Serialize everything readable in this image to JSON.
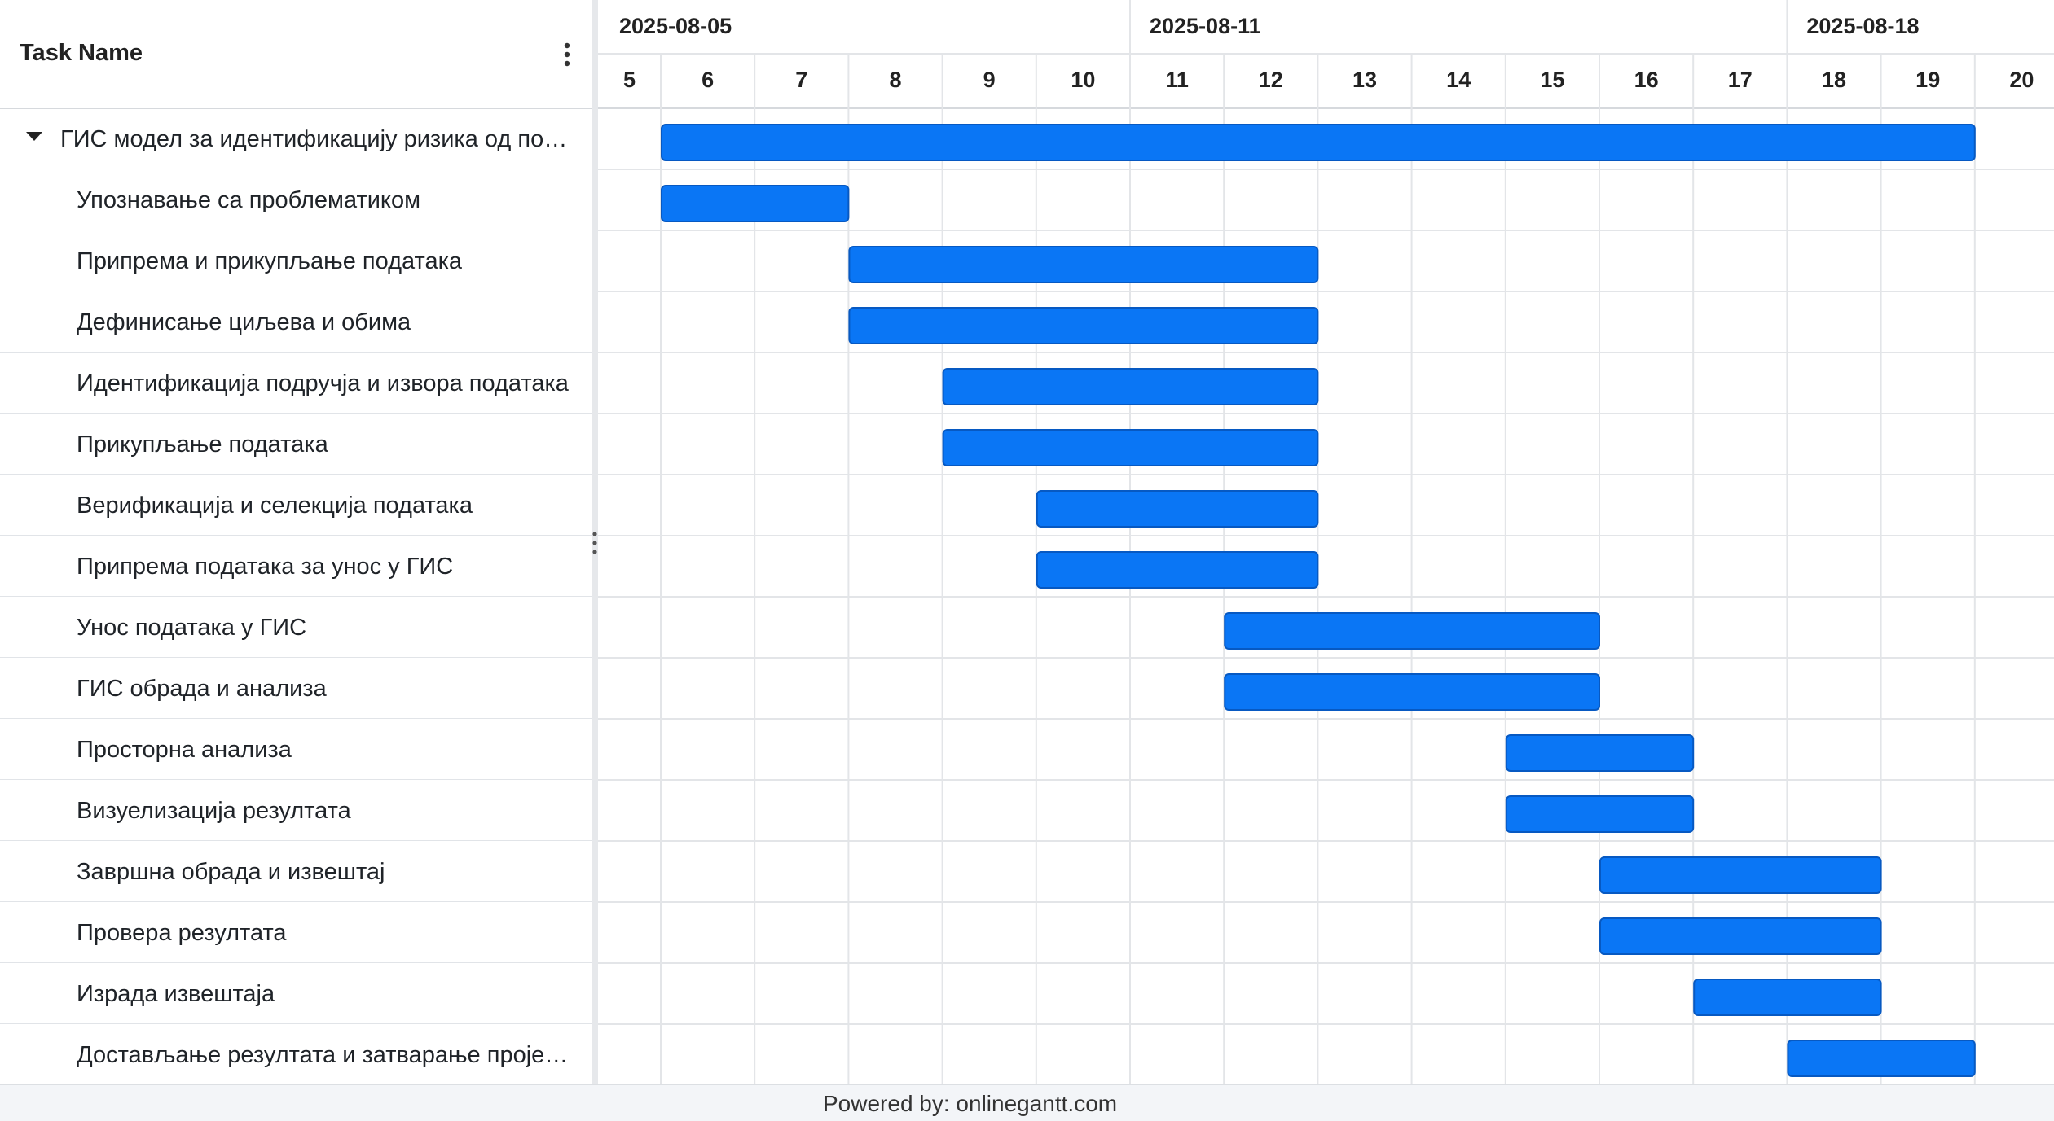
{
  "colors": {
    "bar": "#0a76f5",
    "bar_border": "#0759c2",
    "grid": "#e3e5e8",
    "header_text": "#222222"
  },
  "task_header": {
    "title": "Task Name",
    "menu_icon": "vertical-ellipsis-icon"
  },
  "timeline": {
    "week_labels": [
      {
        "label": "2025-08-05",
        "day": 5
      },
      {
        "label": "2025-08-11",
        "day": 11
      },
      {
        "label": "2025-08-18",
        "day": 18
      }
    ],
    "days": [
      5,
      6,
      7,
      8,
      9,
      10,
      11,
      12,
      13,
      14,
      15,
      16,
      17,
      18,
      19,
      20
    ]
  },
  "tasks": [
    {
      "name": "ГИС модел за идентификацију ризика од поплава",
      "level": 0,
      "collapsible": true,
      "start": 6,
      "end": 20
    },
    {
      "name": "Упознавање са проблематиком",
      "level": 1,
      "start": 6,
      "end": 8
    },
    {
      "name": "Припрема и прикупљање података",
      "level": 1,
      "start": 8,
      "end": 13
    },
    {
      "name": "Дефинисање циљева и обима",
      "level": 1,
      "start": 8,
      "end": 13
    },
    {
      "name": "Идентификација подручја и извора података",
      "level": 1,
      "start": 9,
      "end": 13
    },
    {
      "name": "Прикупљање података",
      "level": 1,
      "start": 9,
      "end": 13
    },
    {
      "name": "Верификација и селекција података",
      "level": 1,
      "start": 10,
      "end": 13
    },
    {
      "name": "Припрема података за унос у ГИС",
      "level": 1,
      "start": 10,
      "end": 13
    },
    {
      "name": "Унос података у ГИС",
      "level": 1,
      "start": 12,
      "end": 16
    },
    {
      "name": "ГИС обрада и анализа",
      "level": 1,
      "start": 12,
      "end": 16
    },
    {
      "name": "Просторна анализа",
      "level": 1,
      "start": 15,
      "end": 17
    },
    {
      "name": "Визуелизација резултата",
      "level": 1,
      "start": 15,
      "end": 17
    },
    {
      "name": "Завршна обрада и извештај",
      "level": 1,
      "start": 16,
      "end": 19
    },
    {
      "name": "Провера резултата",
      "level": 1,
      "start": 16,
      "end": 19
    },
    {
      "name": "Израда извештаја",
      "level": 1,
      "start": 17,
      "end": 19
    },
    {
      "name": "Достављање резултата и затварање пројекта",
      "level": 1,
      "start": 18,
      "end": 20
    }
  ],
  "footer": {
    "text": "Powered by: onlinegantt.com"
  }
}
